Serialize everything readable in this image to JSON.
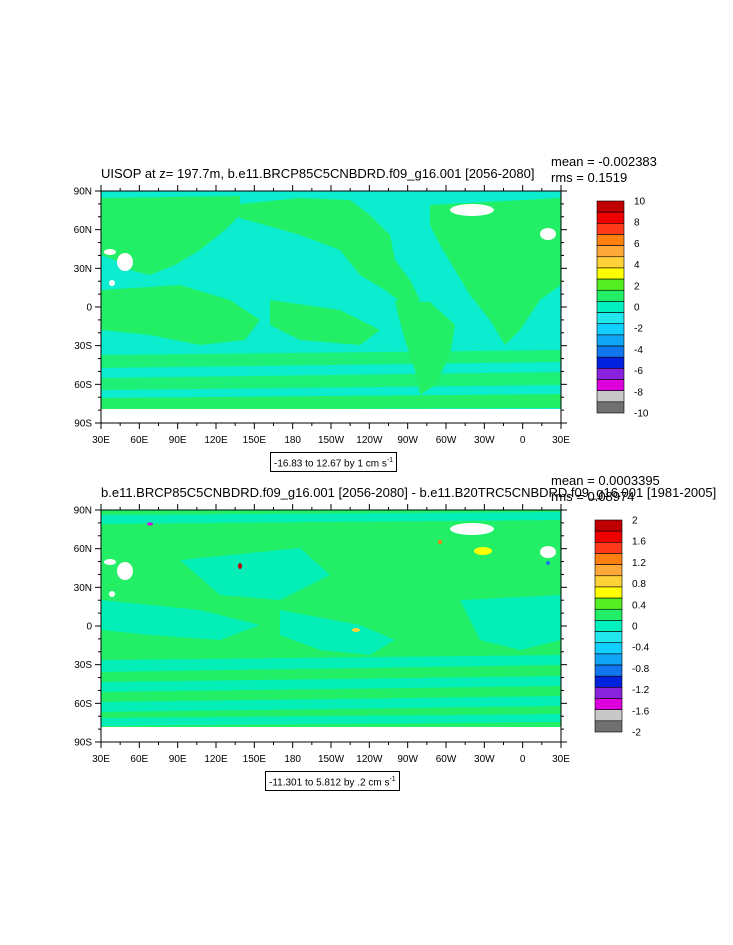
{
  "chart_data": [
    {
      "type": "heatmap",
      "title": "UISOP at z= 197.7m, b.e11.BRCP85C5CNBDRD.f09_g16.001 [2056-2080]",
      "stats": {
        "mean": "mean = -0.002383",
        "rms": "rms = 0.1519"
      },
      "x_ticks": [
        "30E",
        "60E",
        "90E",
        "120E",
        "150E",
        "180",
        "150W",
        "120W",
        "90W",
        "60W",
        "30W",
        "0",
        "30E"
      ],
      "y_ticks": [
        "90N",
        "60N",
        "30N",
        "0",
        "30S",
        "60S",
        "90S"
      ],
      "colorbar": {
        "labels": [
          "10",
          "8",
          "6",
          "4",
          "2",
          "0",
          "-2",
          "-4",
          "-6",
          "-8",
          "-10"
        ],
        "colors": [
          "#c00000",
          "#ee0000",
          "#ff3a1a",
          "#ff7f11",
          "#ffa83a",
          "#ffd23a",
          "#ffff00",
          "#55ee22",
          "#22ee66",
          "#00f0c0",
          "#22e8ee",
          "#11cfff",
          "#11a5f5",
          "#1177ee",
          "#0022dd",
          "#8822dd",
          "#dd00dd",
          "#c8c8c8",
          "#707070"
        ]
      },
      "range_label": {
        "text": "-16.83 to 12.67 by 1 cm s",
        "sup": "-1"
      },
      "xlim": [
        30,
        390
      ],
      "ylim": [
        -90,
        90
      ]
    },
    {
      "type": "heatmap",
      "title": "b.e11.BRCP85C5CNBDRD.f09_g16.001 [2056-2080] - b.e11.B20TRC5CNBDRD.f09_g16.001 [1981-2005]",
      "stats": {
        "mean": "mean = 0.0003395",
        "rms": "rms = 0.08974"
      },
      "x_ticks": [
        "30E",
        "60E",
        "90E",
        "120E",
        "150E",
        "180",
        "150W",
        "120W",
        "90W",
        "60W",
        "30W",
        "0",
        "30E"
      ],
      "y_ticks": [
        "90N",
        "60N",
        "30N",
        "0",
        "30S",
        "60S",
        "90S"
      ],
      "colorbar": {
        "labels": [
          "2",
          "1.6",
          "1.2",
          "0.8",
          "0.4",
          "0",
          "-0.4",
          "-0.8",
          "-1.2",
          "-1.6",
          "-2"
        ],
        "colors": [
          "#c00000",
          "#ee0000",
          "#ff3a1a",
          "#ff7f11",
          "#ffa83a",
          "#ffd23a",
          "#ffff00",
          "#55ee22",
          "#22ee66",
          "#00f0c0",
          "#22e8ee",
          "#11cfff",
          "#11a5f5",
          "#1177ee",
          "#0022dd",
          "#8822dd",
          "#dd00dd",
          "#c8c8c8",
          "#707070"
        ]
      },
      "range_label": {
        "text": "-11.301 to 5.812 by .2 cm s",
        "sup": "-1"
      },
      "xlim": [
        30,
        390
      ],
      "ylim": [
        -90,
        90
      ]
    }
  ],
  "colors": {
    "land_zero": "#22ee66",
    "ocean_neg": "#00f0c0",
    "no_data": "#ffffff"
  }
}
